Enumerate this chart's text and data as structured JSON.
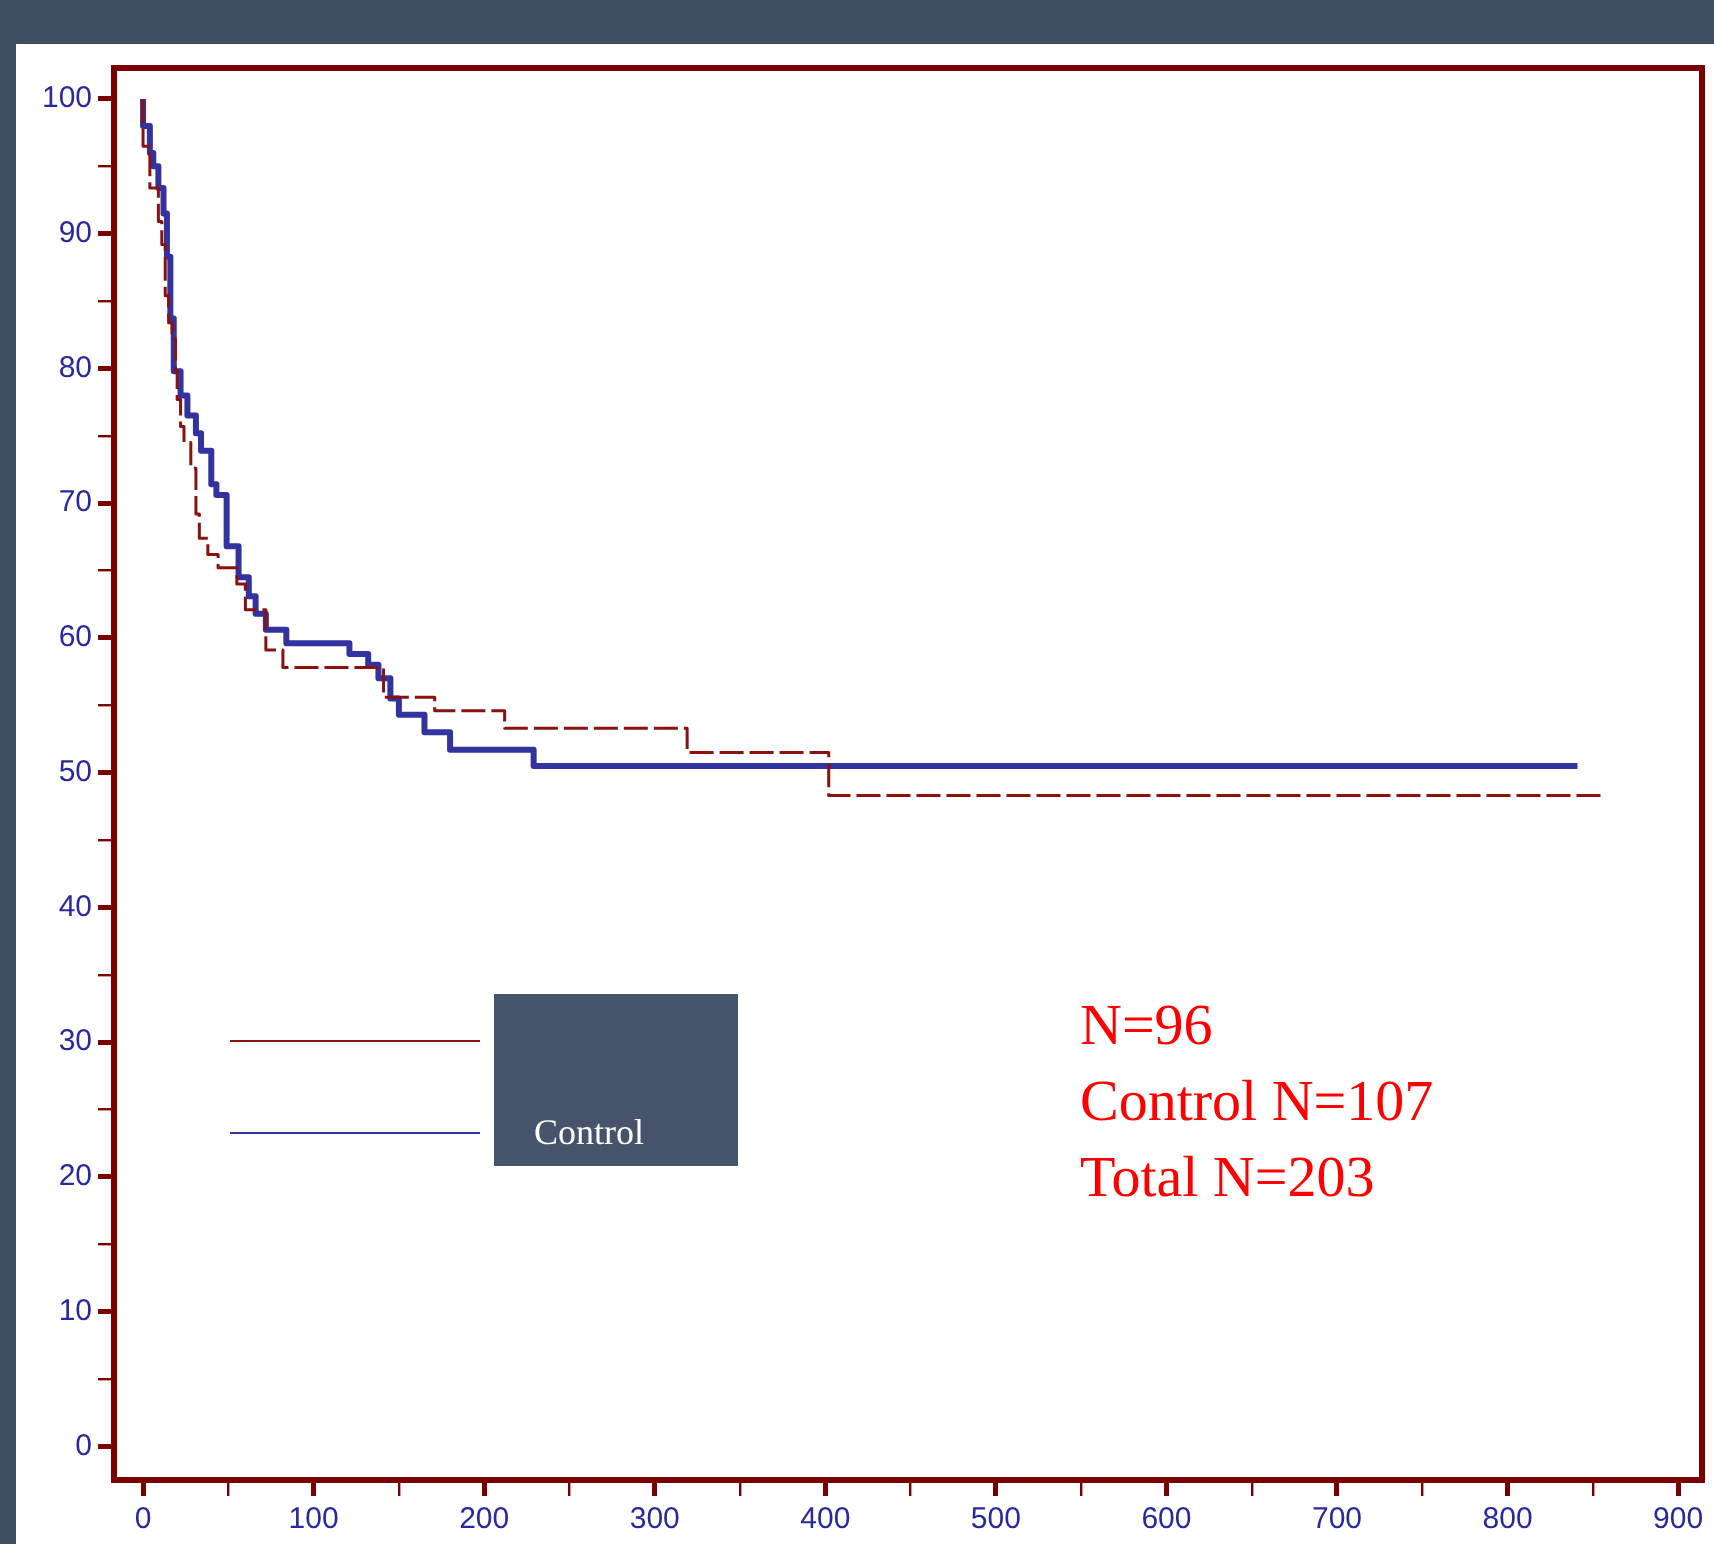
{
  "chart_data": {
    "type": "step",
    "xlim": [
      -17,
      914
    ],
    "ylim": [
      -2.5,
      102.3
    ],
    "xticks": [
      0,
      {
        "value": 50,
        "label": null
      },
      100,
      {
        "value": 150,
        "label": null
      },
      200,
      {
        "value": 250,
        "label": null
      },
      300,
      {
        "value": 350,
        "label": null
      },
      400,
      {
        "value": 450,
        "label": null
      },
      500,
      {
        "value": 550,
        "label": null
      },
      600,
      {
        "value": 650,
        "label": null
      },
      700,
      {
        "value": 750,
        "label": null
      },
      800,
      {
        "value": 850,
        "label": null
      },
      900
    ],
    "yticks": [
      0,
      {
        "value": 5,
        "label": null
      },
      10,
      {
        "value": 15,
        "label": null
      },
      20,
      {
        "value": 25,
        "label": null
      },
      30,
      {
        "value": 35,
        "label": null
      },
      40,
      {
        "value": 45,
        "label": null
      },
      50,
      {
        "value": 55,
        "label": null
      },
      60,
      {
        "value": 65,
        "label": null
      },
      70,
      {
        "value": 75,
        "label": null
      },
      80,
      {
        "value": 85,
        "label": null
      },
      90,
      {
        "value": 95,
        "label": null
      },
      100
    ],
    "grid": false,
    "legend": "bottom left",
    "marker": "none",
    "series": [
      {
        "color": "#8b1111",
        "line_style": "dashed",
        "x": [
          0,
          4,
          9,
          11,
          13,
          15,
          17,
          19,
          20,
          22,
          24,
          28,
          31,
          33,
          38,
          44,
          55,
          60,
          72,
          82,
          141,
          171,
          212,
          319,
          402,
          537,
          858
        ],
        "values": [
          100,
          96.5,
          93.4,
          90.9,
          89.2,
          85.4,
          83.4,
          82.2,
          79.8,
          77.7,
          75.7,
          74.5,
          72.6,
          69.2,
          67.4,
          66.2,
          65.2,
          64,
          62.1,
          59.1,
          57.8,
          55.6,
          54.6,
          53.3,
          51.5,
          48.3,
          48.3
        ]
      },
      {
        "name": "Control",
        "color": "#3333a0",
        "line_style": "solid",
        "x": [
          0,
          4,
          6,
          9,
          12,
          14,
          16,
          18,
          22,
          26,
          31,
          34,
          40,
          43,
          49,
          56,
          62,
          66,
          72,
          84,
          121,
          132,
          138,
          145,
          150,
          165,
          180,
          229,
          280,
          841
        ],
        "values": [
          100,
          98,
          96,
          95,
          93.4,
          91.5,
          88.3,
          83.7,
          79.8,
          78,
          76.5,
          75.2,
          73.9,
          71.4,
          70.6,
          66.8,
          64.5,
          63.1,
          61.8,
          60.6,
          59.6,
          58.8,
          58,
          57,
          55.5,
          54.3,
          53,
          51.7,
          50.5,
          50.5
        ]
      }
    ],
    "annotations": [
      "N=96",
      "Control N=107",
      "Total N=203"
    ]
  }
}
